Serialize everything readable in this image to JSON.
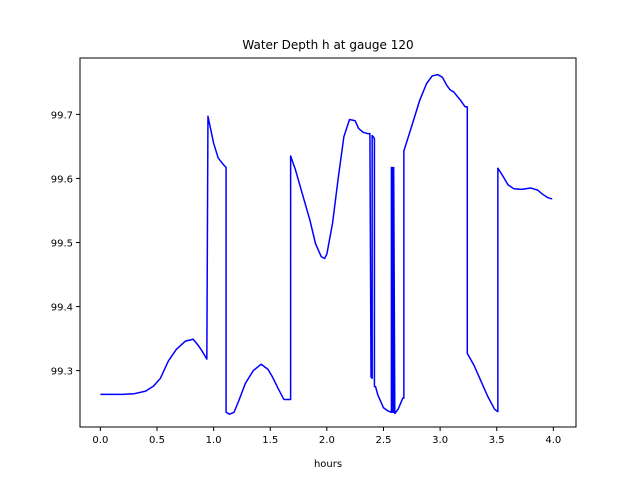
{
  "chart_data": {
    "type": "line",
    "title": "Water Depth h at gauge 120",
    "xlabel": "hours",
    "ylabel": "",
    "xlim": [
      -0.18,
      4.2
    ],
    "ylim": [
      99.212,
      99.788
    ],
    "xticks": [
      0.0,
      0.5,
      1.0,
      1.5,
      2.0,
      2.5,
      3.0,
      3.5,
      4.0
    ],
    "xtick_labels": [
      "0.0",
      "0.5",
      "1.0",
      "1.5",
      "2.0",
      "2.5",
      "3.0",
      "3.5",
      "4.0"
    ],
    "yticks": [
      99.3,
      99.4,
      99.5,
      99.6,
      99.7
    ],
    "ytick_labels": [
      "99.3",
      "99.4",
      "99.5",
      "99.6",
      "99.7"
    ],
    "grid": false,
    "series": [
      {
        "color": "#0000ff",
        "x": [
          0.0,
          0.1,
          0.2,
          0.3,
          0.4,
          0.47,
          0.53,
          0.6,
          0.67,
          0.75,
          0.82,
          0.87,
          0.9,
          0.94,
          0.95,
          0.97,
          1.0,
          1.04,
          1.08,
          1.11,
          1.11,
          1.14,
          1.18,
          1.22,
          1.28,
          1.35,
          1.42,
          1.48,
          1.52,
          1.57,
          1.62,
          1.66,
          1.68,
          1.68,
          1.72,
          1.78,
          1.85,
          1.9,
          1.95,
          1.98,
          2.0,
          2.05,
          2.1,
          2.15,
          2.2,
          2.25,
          2.28,
          2.32,
          2.36,
          2.38,
          2.39,
          2.39,
          2.4,
          2.4,
          2.41,
          2.41,
          2.42,
          2.42,
          2.43,
          2.43,
          2.45,
          2.5,
          2.54,
          2.57,
          2.57,
          2.58,
          2.58,
          2.59,
          2.59,
          2.6,
          2.63,
          2.67,
          2.68,
          2.68,
          2.75,
          2.82,
          2.88,
          2.93,
          2.98,
          3.02,
          3.06,
          3.09,
          3.12,
          3.18,
          3.22,
          3.24,
          3.24,
          3.3,
          3.35,
          3.42,
          3.48,
          3.5,
          3.51,
          3.51,
          3.55,
          3.6,
          3.65,
          3.72,
          3.8,
          3.86,
          3.9,
          3.95,
          3.99
        ],
        "y": [
          99.263,
          99.263,
          99.263,
          99.264,
          99.268,
          99.276,
          99.288,
          99.315,
          99.333,
          99.346,
          99.349,
          99.338,
          99.33,
          99.318,
          99.697,
          99.68,
          99.655,
          99.632,
          99.623,
          99.617,
          99.235,
          99.232,
          99.235,
          99.252,
          99.28,
          99.3,
          99.31,
          99.302,
          99.29,
          99.272,
          99.255,
          99.255,
          99.255,
          99.635,
          99.615,
          99.578,
          99.535,
          99.498,
          99.478,
          99.475,
          99.482,
          99.53,
          99.6,
          99.665,
          99.692,
          99.69,
          99.678,
          99.672,
          99.67,
          99.67,
          99.29,
          99.29,
          99.288,
          99.667,
          99.665,
          99.665,
          99.662,
          99.275,
          99.275,
          99.275,
          99.262,
          99.242,
          99.237,
          99.235,
          99.617,
          99.617,
          99.235,
          99.235,
          99.617,
          99.233,
          99.24,
          99.257,
          99.257,
          99.643,
          99.682,
          99.722,
          99.748,
          99.76,
          99.762,
          99.758,
          99.745,
          99.738,
          99.735,
          99.722,
          99.712,
          99.712,
          99.327,
          99.308,
          99.288,
          99.26,
          99.24,
          99.237,
          99.236,
          99.616,
          99.605,
          99.59,
          99.584,
          99.583,
          99.585,
          99.582,
          99.576,
          99.57,
          99.568
        ]
      }
    ]
  }
}
